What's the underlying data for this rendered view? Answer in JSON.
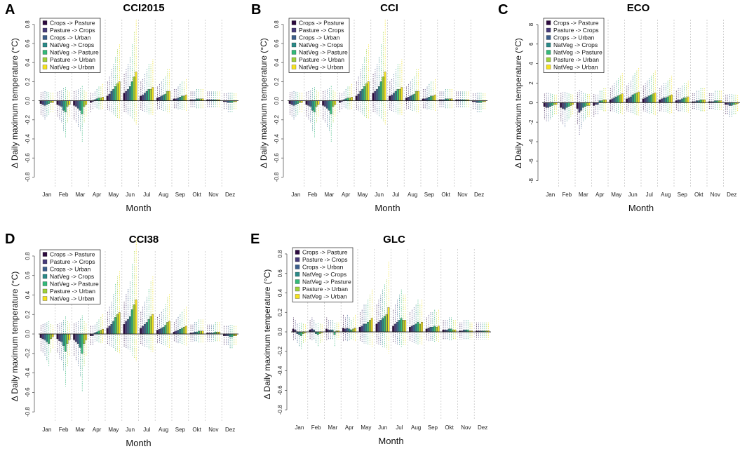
{
  "figure": {
    "legend_colors": [
      "#2d0a3f",
      "#473b7a",
      "#3b5e8b",
      "#2a8a88",
      "#33b97a",
      "#9fd13a",
      "#f5e21e"
    ]
  },
  "chart_data": [
    {
      "type": "bar",
      "panel_label": "A",
      "title": "CCI2015",
      "xlabel": "Month",
      "ylabel": "Δ Daily maximum temperature (°C)",
      "ylim": [
        -0.9,
        0.85
      ],
      "yticks": [
        -0.8,
        -0.6,
        -0.4,
        -0.2,
        0.0,
        0.2,
        0.4,
        0.6,
        0.8
      ],
      "ytick_labels": [
        "-0.8",
        "-0.6",
        "-0.4",
        "-0.2",
        "0.0",
        "0.2",
        "0.4",
        "0.6",
        "0.8"
      ],
      "categories": [
        "Jan",
        "Feb",
        "Mar",
        "Apr",
        "May",
        "Jun",
        "Jul",
        "Aug",
        "Sep",
        "Okt",
        "Nov",
        "Dez"
      ],
      "series": [
        {
          "name": "Crops -> Pasture",
          "values": [
            -0.03,
            -0.04,
            -0.05,
            -0.02,
            0.05,
            0.08,
            0.05,
            0.03,
            0.02,
            0.01,
            0.01,
            -0.01
          ]
        },
        {
          "name": "Pasture -> Crops",
          "values": [
            -0.04,
            -0.05,
            -0.06,
            -0.01,
            0.07,
            0.1,
            0.06,
            0.04,
            0.02,
            0.01,
            0.01,
            -0.01
          ]
        },
        {
          "name": "Crops -> Urban",
          "values": [
            -0.05,
            -0.06,
            -0.08,
            0.01,
            0.1,
            0.12,
            0.08,
            0.05,
            0.03,
            0.01,
            0.01,
            -0.02
          ]
        },
        {
          "name": "NatVeg -> Crops",
          "values": [
            -0.04,
            -0.1,
            -0.1,
            0.02,
            0.12,
            0.15,
            0.1,
            0.06,
            0.04,
            0.02,
            0.01,
            -0.02
          ]
        },
        {
          "name": "NatVeg -> Pasture",
          "values": [
            -0.03,
            -0.12,
            -0.14,
            0.03,
            0.15,
            0.2,
            0.12,
            0.07,
            0.05,
            0.02,
            0.01,
            -0.02
          ]
        },
        {
          "name": "Pasture -> Urban",
          "values": [
            -0.02,
            -0.06,
            -0.06,
            0.03,
            0.18,
            0.25,
            0.12,
            0.1,
            0.05,
            0.02,
            0.01,
            -0.01
          ]
        },
        {
          "name": "NatVeg -> Urban",
          "values": [
            -0.02,
            -0.04,
            -0.04,
            0.04,
            0.2,
            0.3,
            0.14,
            0.1,
            0.06,
            0.02,
            0.01,
            -0.01
          ]
        }
      ]
    },
    {
      "type": "bar",
      "panel_label": "B",
      "title": "CCI",
      "xlabel": "Month",
      "ylabel": "Δ Daily maximum temperature (°C)",
      "ylim": [
        -0.9,
        0.85
      ],
      "yticks": [
        -0.8,
        -0.6,
        -0.4,
        -0.2,
        0.0,
        0.2,
        0.4,
        0.6,
        0.8
      ],
      "ytick_labels": [
        "-0.8",
        "-0.6",
        "-0.4",
        "-0.2",
        "0.0",
        "0.2",
        "0.4",
        "0.6",
        "0.8"
      ],
      "categories": [
        "Jan",
        "Feb",
        "Mar",
        "Apr",
        "May",
        "Jun",
        "Jul",
        "Aug",
        "Sep",
        "Okt",
        "Nov",
        "Dez"
      ],
      "series": [
        {
          "name": "Crops -> Pasture",
          "values": [
            -0.03,
            -0.04,
            -0.05,
            -0.02,
            0.05,
            0.08,
            0.05,
            0.03,
            0.02,
            0.01,
            0.01,
            -0.01
          ]
        },
        {
          "name": "Pasture -> Crops",
          "values": [
            -0.04,
            -0.05,
            -0.06,
            -0.01,
            0.07,
            0.1,
            0.06,
            0.04,
            0.02,
            0.01,
            0.01,
            -0.01
          ]
        },
        {
          "name": "Crops -> Urban",
          "values": [
            -0.05,
            -0.06,
            -0.08,
            0.01,
            0.1,
            0.12,
            0.08,
            0.05,
            0.03,
            0.01,
            0.01,
            -0.02
          ]
        },
        {
          "name": "NatVeg -> Crops",
          "values": [
            -0.04,
            -0.1,
            -0.1,
            0.02,
            0.12,
            0.15,
            0.1,
            0.06,
            0.04,
            0.02,
            0.01,
            -0.02
          ]
        },
        {
          "name": "NatVeg -> Pasture",
          "values": [
            -0.03,
            -0.12,
            -0.14,
            0.03,
            0.15,
            0.2,
            0.12,
            0.07,
            0.05,
            0.02,
            0.01,
            -0.02
          ]
        },
        {
          "name": "Pasture -> Urban",
          "values": [
            -0.02,
            -0.06,
            -0.06,
            0.03,
            0.18,
            0.25,
            0.12,
            0.1,
            0.05,
            0.02,
            0.01,
            -0.01
          ]
        },
        {
          "name": "NatVeg -> Urban",
          "values": [
            -0.02,
            -0.04,
            -0.04,
            0.04,
            0.2,
            0.3,
            0.14,
            0.1,
            0.06,
            0.02,
            0.01,
            -0.01
          ]
        }
      ]
    },
    {
      "type": "bar",
      "panel_label": "C",
      "title": "ECO",
      "xlabel": "Month",
      "ylabel": "Δ Daily maximum temperature (°C)",
      "ylim": [
        -8.6,
        8.5
      ],
      "yticks": [
        -8,
        -6,
        -4,
        -2,
        0,
        2,
        4,
        6,
        8
      ],
      "ytick_labels": [
        "-8",
        "-6",
        "-4",
        "-2",
        "0",
        "2",
        "4",
        "6",
        "8"
      ],
      "categories": [
        "Jan",
        "Feb",
        "Mar",
        "Apr",
        "May",
        "Jun",
        "Jul",
        "Aug",
        "Sep",
        "Okt",
        "Nov",
        "Dez"
      ],
      "series": [
        {
          "name": "Crops -> Pasture",
          "values": [
            -0.4,
            -0.5,
            -0.6,
            -0.3,
            0.3,
            0.4,
            0.4,
            0.3,
            0.2,
            0.1,
            0.1,
            -0.2
          ]
        },
        {
          "name": "Pasture -> Crops",
          "values": [
            -0.5,
            -0.6,
            -1.0,
            -0.2,
            0.4,
            0.5,
            0.5,
            0.4,
            0.3,
            0.1,
            0.1,
            -0.2
          ]
        },
        {
          "name": "Crops -> Urban",
          "values": [
            -0.5,
            -0.7,
            -0.8,
            -0.2,
            0.5,
            0.6,
            0.6,
            0.5,
            0.3,
            0.2,
            0.1,
            -0.3
          ]
        },
        {
          "name": "NatVeg -> Crops",
          "values": [
            -0.4,
            -0.5,
            -0.5,
            0.2,
            0.6,
            0.8,
            0.7,
            0.5,
            0.4,
            0.2,
            0.2,
            -0.3
          ]
        },
        {
          "name": "NatVeg -> Pasture",
          "values": [
            -0.3,
            -0.4,
            -0.4,
            0.2,
            0.7,
            0.9,
            0.8,
            0.6,
            0.5,
            0.3,
            0.2,
            -0.2
          ]
        },
        {
          "name": "Pasture -> Urban",
          "values": [
            -0.2,
            -0.3,
            -0.3,
            0.3,
            0.8,
            1.0,
            0.9,
            0.7,
            0.5,
            0.3,
            0.2,
            -0.2
          ]
        },
        {
          "name": "NatVeg -> Urban",
          "values": [
            -0.2,
            -0.2,
            -0.3,
            0.3,
            0.9,
            1.1,
            1.0,
            0.8,
            0.6,
            0.3,
            0.2,
            -0.1
          ]
        }
      ]
    },
    {
      "type": "bar",
      "panel_label": "D",
      "title": "CCI38",
      "xlabel": "Month",
      "ylabel": "Δ Daily maximum temperature (°C)",
      "ylim": [
        -0.9,
        0.85
      ],
      "yticks": [
        -0.8,
        -0.6,
        -0.4,
        -0.2,
        0.0,
        0.2,
        0.4,
        0.6,
        0.8
      ],
      "ytick_labels": [
        "-0.8",
        "-0.6",
        "-0.4",
        "-0.2",
        "0.0",
        "0.2",
        "0.4",
        "0.6",
        "0.8"
      ],
      "categories": [
        "Jan",
        "Feb",
        "Mar",
        "Apr",
        "May",
        "Jun",
        "Jul",
        "Aug",
        "Sep",
        "Okt",
        "Nov",
        "Dez"
      ],
      "series": [
        {
          "name": "Crops -> Pasture",
          "values": [
            -0.04,
            -0.05,
            -0.06,
            -0.02,
            0.06,
            0.1,
            0.06,
            0.04,
            0.02,
            0.01,
            0.01,
            -0.02
          ]
        },
        {
          "name": "Pasture -> Crops",
          "values": [
            -0.05,
            -0.07,
            -0.08,
            -0.02,
            0.08,
            0.13,
            0.08,
            0.05,
            0.03,
            0.01,
            0.01,
            -0.02
          ]
        },
        {
          "name": "Crops -> Urban",
          "values": [
            -0.06,
            -0.08,
            -0.1,
            0.01,
            0.1,
            0.15,
            0.1,
            0.06,
            0.04,
            0.02,
            0.01,
            -0.02
          ]
        },
        {
          "name": "NatVeg -> Crops",
          "values": [
            -0.08,
            -0.12,
            -0.14,
            0.02,
            0.13,
            0.18,
            0.12,
            0.07,
            0.05,
            0.02,
            0.01,
            -0.03
          ]
        },
        {
          "name": "NatVeg -> Pasture",
          "values": [
            -0.1,
            -0.18,
            -0.2,
            0.03,
            0.17,
            0.25,
            0.15,
            0.09,
            0.06,
            0.03,
            0.02,
            -0.03
          ]
        },
        {
          "name": "Pasture -> Urban",
          "values": [
            -0.05,
            -0.1,
            -0.1,
            0.04,
            0.2,
            0.3,
            0.18,
            0.12,
            0.07,
            0.03,
            0.02,
            -0.02
          ]
        },
        {
          "name": "NatVeg -> Urban",
          "values": [
            -0.03,
            -0.06,
            -0.06,
            0.05,
            0.22,
            0.35,
            0.2,
            0.13,
            0.08,
            0.03,
            0.02,
            -0.02
          ]
        }
      ]
    },
    {
      "type": "bar",
      "panel_label": "E",
      "title": "GLC",
      "xlabel": "Month",
      "ylabel": "Δ Daily maximum temperature (°C)",
      "ylim": [
        -0.9,
        0.85
      ],
      "yticks": [
        -0.8,
        -0.6,
        -0.4,
        -0.2,
        0.0,
        0.2,
        0.4,
        0.6,
        0.8
      ],
      "ytick_labels": [
        "-0.8",
        "-0.6",
        "-0.4",
        "-0.2",
        "0.0",
        "0.2",
        "0.4",
        "0.6",
        "0.8"
      ],
      "categories": [
        "Jan",
        "Feb",
        "Mar",
        "Apr",
        "May",
        "Jun",
        "Jul",
        "Aug",
        "Sep",
        "Okt",
        "Nov",
        "Dez"
      ],
      "series": [
        {
          "name": "Crops -> Pasture",
          "values": [
            0.03,
            0.02,
            0.03,
            0.04,
            0.05,
            0.08,
            0.06,
            0.05,
            0.03,
            0.02,
            0.01,
            0.01
          ]
        },
        {
          "name": "Pasture -> Crops",
          "values": [
            0.02,
            0.03,
            0.02,
            0.03,
            0.06,
            0.1,
            0.08,
            0.06,
            0.04,
            0.02,
            0.01,
            0.01
          ]
        },
        {
          "name": "Crops -> Urban",
          "values": [
            -0.02,
            0.02,
            0.02,
            0.04,
            0.08,
            0.12,
            0.1,
            0.07,
            0.05,
            0.02,
            0.02,
            0.01
          ]
        },
        {
          "name": "NatVeg -> Crops",
          "values": [
            -0.03,
            -0.02,
            0.02,
            0.03,
            0.08,
            0.14,
            0.12,
            0.08,
            0.05,
            0.03,
            0.02,
            0.01
          ]
        },
        {
          "name": "NatVeg -> Pasture",
          "values": [
            -0.04,
            -0.03,
            -0.03,
            0.02,
            0.1,
            0.16,
            0.14,
            0.1,
            0.06,
            0.03,
            0.02,
            0.01
          ]
        },
        {
          "name": "Pasture -> Urban",
          "values": [
            -0.02,
            -0.02,
            0.01,
            0.03,
            0.12,
            0.18,
            0.12,
            0.08,
            0.05,
            0.02,
            0.01,
            0.01
          ]
        },
        {
          "name": "NatVeg -> Urban",
          "values": [
            -0.01,
            -0.01,
            0.01,
            0.04,
            0.14,
            0.25,
            0.12,
            0.1,
            0.06,
            0.02,
            0.01,
            0.01
          ]
        }
      ]
    }
  ]
}
